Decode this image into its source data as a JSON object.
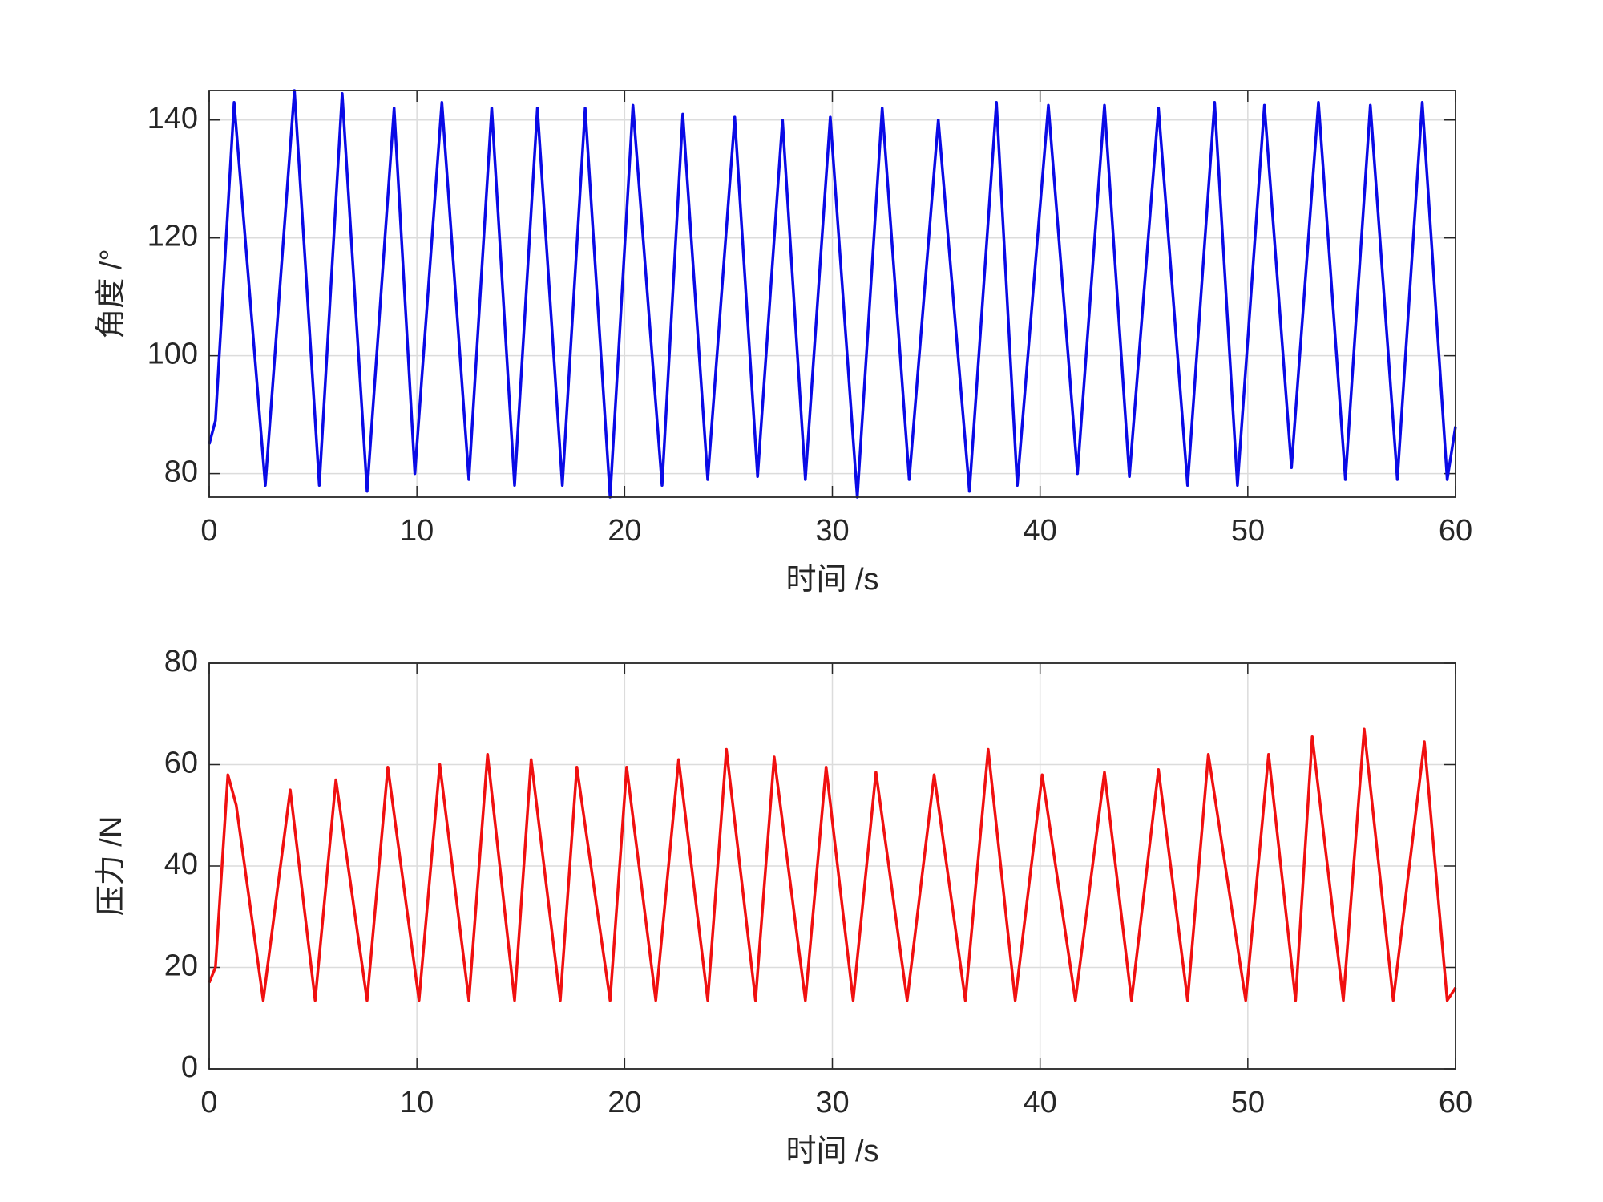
{
  "chart_data": [
    {
      "type": "line",
      "ylabel": "角度 /°",
      "xlabel": "时间 /s",
      "color": "#0a0ae6",
      "grid": true,
      "xlim": [
        0,
        60
      ],
      "xticks": [
        0,
        10,
        20,
        30,
        40,
        50,
        60
      ],
      "ylim": [
        76,
        145
      ],
      "yticks": [
        80,
        100,
        120,
        140
      ],
      "x": [
        0,
        0.3,
        1.2,
        2.7,
        4.1,
        5.3,
        6.4,
        7.6,
        8.9,
        9.9,
        11.2,
        12.5,
        13.6,
        14.7,
        15.8,
        17.0,
        18.1,
        19.3,
        20.4,
        21.8,
        22.8,
        24.0,
        25.3,
        26.4,
        27.6,
        28.7,
        29.9,
        31.2,
        32.4,
        33.7,
        35.1,
        36.6,
        37.9,
        38.9,
        40.4,
        41.8,
        43.1,
        44.3,
        45.7,
        47.1,
        48.4,
        49.5,
        50.8,
        52.1,
        53.4,
        54.7,
        55.9,
        57.2,
        58.4,
        59.6,
        60
      ],
      "values": [
        85,
        89,
        143,
        78,
        145,
        78,
        144.5,
        77,
        142,
        80,
        143,
        79,
        142,
        78,
        142,
        78,
        142,
        76,
        142.5,
        78,
        141,
        79,
        140.5,
        79.5,
        140,
        79,
        140.5,
        76,
        142,
        79,
        140,
        77,
        143,
        78,
        142.5,
        80,
        142.5,
        79.5,
        142,
        78,
        143,
        78,
        142.5,
        81,
        143,
        79,
        142.5,
        79,
        143,
        79,
        88
      ]
    },
    {
      "type": "line",
      "ylabel": "压力 /N",
      "xlabel": "时间 /s",
      "color": "#f01010",
      "grid": true,
      "xlim": [
        0,
        60
      ],
      "xticks": [
        0,
        10,
        20,
        30,
        40,
        50,
        60
      ],
      "ylim": [
        0,
        80
      ],
      "yticks": [
        0,
        20,
        40,
        60,
        80
      ],
      "x": [
        0,
        0.3,
        0.9,
        1.3,
        2.6,
        3.9,
        5.1,
        6.1,
        7.6,
        8.6,
        10.1,
        11.1,
        12.5,
        13.4,
        14.7,
        15.5,
        16.9,
        17.7,
        19.3,
        20.1,
        21.5,
        22.6,
        24.0,
        24.9,
        26.3,
        27.2,
        28.7,
        29.7,
        31.0,
        32.1,
        33.6,
        34.9,
        36.4,
        37.5,
        38.8,
        40.1,
        41.7,
        43.1,
        44.4,
        45.7,
        47.1,
        48.1,
        49.9,
        51.0,
        52.3,
        53.1,
        54.6,
        55.6,
        57.0,
        58.5,
        59.6,
        60
      ],
      "values": [
        17,
        20,
        58,
        52,
        13.5,
        55,
        13.5,
        57,
        13.5,
        59.5,
        13.5,
        60,
        13.5,
        62,
        13.5,
        61,
        13.5,
        59.5,
        13.5,
        59.5,
        13.5,
        61,
        13.5,
        63,
        13.5,
        61.5,
        13.5,
        59.5,
        13.5,
        58.5,
        13.5,
        58,
        13.5,
        63,
        13.5,
        58,
        13.5,
        58.5,
        13.5,
        59,
        13.5,
        62,
        13.5,
        62,
        13.5,
        65.5,
        13.5,
        67,
        13.5,
        64.5,
        13.5,
        16
      ]
    }
  ]
}
